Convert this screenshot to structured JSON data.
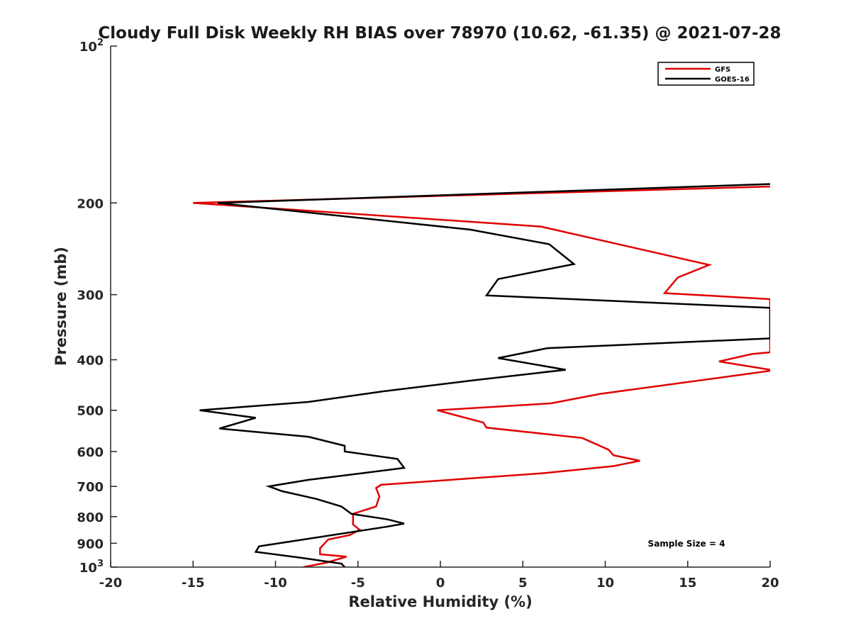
{
  "chart_data": {
    "type": "line",
    "title": "Cloudy Full Disk Weekly RH BIAS over 78970 (10.62, -61.35) @ 2021-07-28",
    "xlabel": "Relative Humidity (%)",
    "ylabel": "Pressure (mb)",
    "xlim": [
      -20,
      20
    ],
    "ylim": [
      1000,
      100
    ],
    "yscale": "log",
    "y_reversed": true,
    "xticks": [
      -20,
      -15,
      -10,
      -5,
      0,
      5,
      10,
      15,
      20
    ],
    "xtick_labels": [
      "-20",
      "-15",
      "-10",
      "-5",
      "0",
      "5",
      "10",
      "15",
      "20"
    ],
    "yticks": [
      100,
      200,
      300,
      400,
      500,
      600,
      700,
      800,
      900,
      1000
    ],
    "ytick_labels": [
      {
        "base": "10",
        "sup": "2"
      },
      {
        "base": "200"
      },
      {
        "base": "300"
      },
      {
        "base": "400"
      },
      {
        "base": "500"
      },
      {
        "base": "600"
      },
      {
        "base": "700"
      },
      {
        "base": "800"
      },
      {
        "base": "900"
      },
      {
        "base": "10",
        "sup": "3"
      }
    ],
    "grid": false,
    "legend_position": "top-right",
    "annotation": "Sample Size = 4",
    "series": [
      {
        "name": "GFS",
        "color": "#e00000",
        "points": [
          [
            20.0,
            186
          ],
          [
            -15.0,
            200
          ],
          [
            6.1,
            222
          ],
          [
            16.3,
            263
          ],
          [
            14.4,
            278
          ],
          [
            13.6,
            298
          ],
          [
            20.0,
            306
          ],
          [
            20.0,
            387
          ],
          [
            18.9,
            390
          ],
          [
            16.9,
            403
          ],
          [
            20.0,
            418
          ],
          [
            20.0,
            420
          ],
          [
            9.7,
            465
          ],
          [
            6.7,
            485
          ],
          [
            -0.2,
            500
          ],
          [
            2.6,
            528
          ],
          [
            2.8,
            540
          ],
          [
            8.6,
            565
          ],
          [
            10.2,
            595
          ],
          [
            10.5,
            610
          ],
          [
            12.1,
            625
          ],
          [
            10.5,
            640
          ],
          [
            6.3,
            660
          ],
          [
            -3.6,
            695
          ],
          [
            -3.9,
            705
          ],
          [
            -3.7,
            732
          ],
          [
            -3.9,
            765
          ],
          [
            -5.3,
            790
          ],
          [
            -5.3,
            828
          ],
          [
            -4.9,
            848
          ],
          [
            -5.5,
            868
          ],
          [
            -6.8,
            885
          ],
          [
            -7.3,
            920
          ],
          [
            -7.3,
            945
          ],
          [
            -5.7,
            955
          ],
          [
            -6.9,
            980
          ],
          [
            -8.3,
            1000
          ]
        ]
      },
      {
        "name": "GOES-16",
        "color": "#000000",
        "points": [
          [
            20.0,
            184
          ],
          [
            -13.5,
            200
          ],
          [
            1.8,
            225
          ],
          [
            6.6,
            240
          ],
          [
            8.1,
            262
          ],
          [
            3.5,
            280
          ],
          [
            2.8,
            301
          ],
          [
            20.0,
            318
          ],
          [
            20.0,
            364
          ],
          [
            6.5,
            380
          ],
          [
            3.5,
            397
          ],
          [
            7.6,
            418
          ],
          [
            2.0,
            438
          ],
          [
            -3.5,
            460
          ],
          [
            -8.0,
            482
          ],
          [
            -14.6,
            500
          ],
          [
            -11.2,
            517
          ],
          [
            -13.4,
            542
          ],
          [
            -8.0,
            562
          ],
          [
            -5.8,
            585
          ],
          [
            -5.8,
            600
          ],
          [
            -2.6,
            620
          ],
          [
            -2.2,
            645
          ],
          [
            -5.5,
            665
          ],
          [
            -8.0,
            680
          ],
          [
            -10.4,
            700
          ],
          [
            -9.6,
            715
          ],
          [
            -7.5,
            740
          ],
          [
            -6.0,
            765
          ],
          [
            -5.4,
            790
          ],
          [
            -3.2,
            810
          ],
          [
            -2.2,
            825
          ],
          [
            -3.3,
            837
          ],
          [
            -8.6,
            888
          ],
          [
            -11.0,
            912
          ],
          [
            -11.2,
            935
          ],
          [
            -8.4,
            960
          ],
          [
            -6.0,
            985
          ],
          [
            -5.8,
            1000
          ]
        ]
      }
    ]
  }
}
